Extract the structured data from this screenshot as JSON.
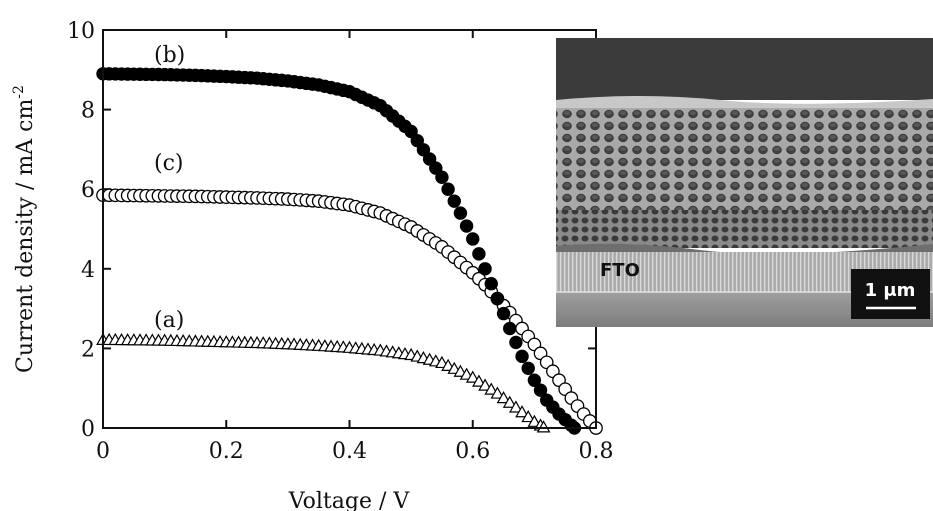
{
  "chart_data": {
    "type": "scatter",
    "xlabel": "Voltage / V",
    "ylabel": "Current density / mA cm",
    "ylabel_superscript": "-2",
    "xlim": [
      0,
      0.8
    ],
    "ylim": [
      0,
      10
    ],
    "xticks": [
      0,
      0.2,
      0.4,
      0.6,
      0.8
    ],
    "yticks": [
      0,
      2,
      4,
      6,
      8,
      10
    ],
    "xtick_labels": [
      "0",
      "0.2",
      "0.4",
      "0.6",
      "0.8"
    ],
    "ytick_labels": [
      "0",
      "2",
      "4",
      "6",
      "8",
      "10"
    ],
    "grid": false,
    "series": [
      {
        "name": "(a)",
        "marker": "open-triangle",
        "isc": 2.2,
        "voc": 0.715,
        "x": [
          0.0,
          0.05,
          0.1,
          0.15,
          0.2,
          0.25,
          0.3,
          0.35,
          0.4,
          0.45,
          0.5,
          0.55,
          0.6,
          0.62,
          0.64,
          0.66,
          0.68,
          0.69,
          0.7,
          0.715
        ],
        "y": [
          2.2,
          2.19,
          2.18,
          2.16,
          2.14,
          2.12,
          2.09,
          2.05,
          2.0,
          1.93,
          1.82,
          1.62,
          1.25,
          1.05,
          0.85,
          0.62,
          0.38,
          0.26,
          0.14,
          0.0
        ]
      },
      {
        "name": "(b)",
        "marker": "filled-circle",
        "isc": 8.9,
        "voc": 0.765,
        "x": [
          0.0,
          0.05,
          0.1,
          0.15,
          0.2,
          0.25,
          0.3,
          0.35,
          0.4,
          0.45,
          0.5,
          0.55,
          0.58,
          0.6,
          0.62,
          0.64,
          0.66,
          0.68,
          0.7,
          0.72,
          0.74,
          0.765
        ],
        "y": [
          8.9,
          8.89,
          8.88,
          8.86,
          8.83,
          8.79,
          8.72,
          8.62,
          8.45,
          8.1,
          7.45,
          6.3,
          5.4,
          4.75,
          4.0,
          3.25,
          2.5,
          1.8,
          1.2,
          0.7,
          0.35,
          0.0
        ]
      },
      {
        "name": "(c)",
        "marker": "open-circle",
        "isc": 5.85,
        "voc": 0.8,
        "x": [
          0.0,
          0.05,
          0.1,
          0.15,
          0.2,
          0.25,
          0.3,
          0.35,
          0.4,
          0.45,
          0.5,
          0.55,
          0.6,
          0.62,
          0.64,
          0.66,
          0.68,
          0.7,
          0.72,
          0.74,
          0.76,
          0.78,
          0.8
        ],
        "y": [
          5.85,
          5.84,
          5.83,
          5.82,
          5.8,
          5.78,
          5.75,
          5.7,
          5.6,
          5.4,
          5.05,
          4.55,
          3.9,
          3.6,
          3.25,
          2.9,
          2.5,
          2.1,
          1.65,
          1.2,
          0.75,
          0.35,
          0.0
        ]
      }
    ]
  },
  "inset": {
    "type": "sem-micrograph",
    "layer_label": "FTO",
    "scale_bar_label": "1 μm"
  }
}
